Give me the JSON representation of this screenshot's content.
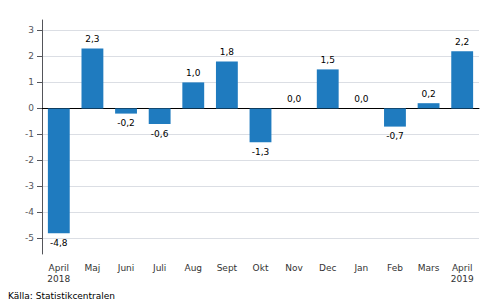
{
  "chart_data": {
    "type": "bar",
    "categories": [
      "April\n2018",
      "Maj",
      "Juni",
      "Juli",
      "Aug",
      "Sept",
      "Okt",
      "Nov",
      "Dec",
      "Jan",
      "Feb",
      "Mars",
      "April\n2019"
    ],
    "values": [
      -4.8,
      2.3,
      -0.2,
      -0.6,
      1.0,
      1.8,
      -1.3,
      0.0,
      1.5,
      0.0,
      -0.7,
      0.2,
      2.2
    ],
    "value_labels": [
      "-4,8",
      "2,3",
      "-0,2",
      "-0,6",
      "1,0",
      "1,8",
      "-1,3",
      "0,0",
      "1,5",
      "0,0",
      "-0,7",
      "0,2",
      "2,2"
    ],
    "data_labels": true,
    "color": "#1f7bbf",
    "ylim": [
      -5.6,
      3.4
    ],
    "yticks": [
      -5,
      -4,
      -3,
      -2,
      -1,
      0,
      1,
      2,
      3
    ],
    "grid": true,
    "annotations": [
      "Källa: Statistikcentralen"
    ]
  }
}
